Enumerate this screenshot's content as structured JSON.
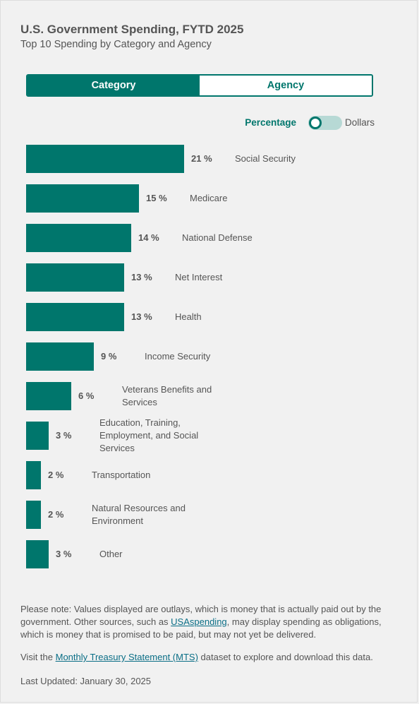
{
  "header": {
    "title": "U.S. Government Spending, FYTD 2025",
    "subtitle": "Top 10 Spending by Category and Agency"
  },
  "tabs": [
    {
      "label": "Category",
      "active": true
    },
    {
      "label": "Agency",
      "active": false
    }
  ],
  "toggle": {
    "left_label": "Percentage",
    "right_label": "Dollars",
    "state": "Percentage"
  },
  "colors": {
    "accent": "#00766c",
    "toggle_track": "#b7d9d5",
    "link": "#0a6e86",
    "text": "#555555"
  },
  "chart_data": {
    "type": "bar",
    "orientation": "horizontal",
    "unit": "%",
    "categories": [
      "Social Security",
      "Medicare",
      "National Defense",
      "Net Interest",
      "Health",
      "Income Security",
      "Veterans Benefits and Services",
      "Education, Training, Employment, and Social Services",
      "Transportation",
      "Natural Resources and Environment",
      "Other"
    ],
    "values": [
      21,
      15,
      14,
      13,
      13,
      9,
      6,
      3,
      2,
      2,
      3
    ],
    "value_labels": [
      "21 %",
      "15 %",
      "14 %",
      "13 %",
      "13 %",
      "9 %",
      "6 %",
      "3 %",
      "2 %",
      "2 %",
      "3 %"
    ]
  },
  "footer": {
    "note_prefix": "Please note: Values displayed are outlays, which is money that is actually paid out by the government. Other sources, such as ",
    "note_link": "USAspending",
    "note_suffix": ", may display spending as obligations, which is money that is promised to be paid, but may not yet be delivered.",
    "visit_prefix": "Visit the ",
    "visit_link": "Monthly Treasury Statement (MTS)",
    "visit_suffix": " dataset to explore and download this data.",
    "last_updated": "Last Updated: January 30, 2025"
  }
}
